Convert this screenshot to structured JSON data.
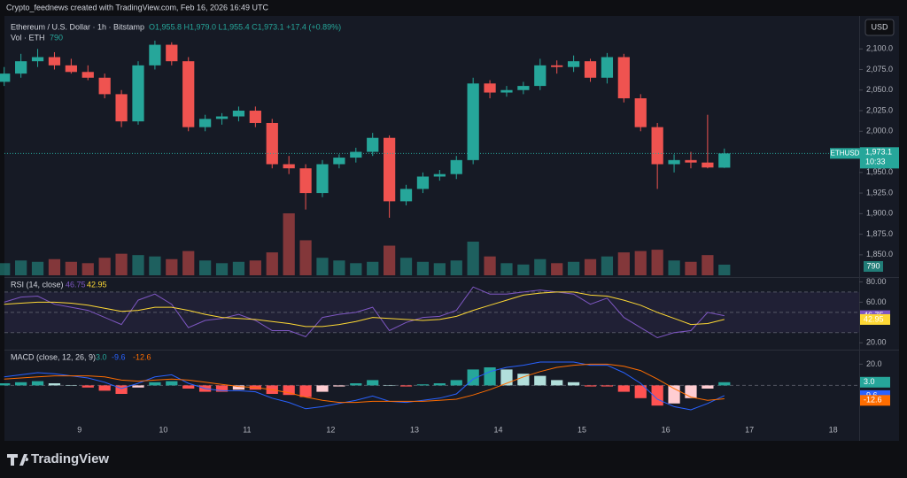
{
  "watermark": "Crypto_feednews created with TradingView.com, Feb 16, 2026 16:49 UTC",
  "currency": "USD",
  "brand": "TradingView",
  "chart_data": [
    {
      "type": "candlestick",
      "title": "Ethereum / U.S. Dollar · 1h · Bitstamp",
      "ohlc_text": "O1,955.8 H1,979.0 L1,955.4 C1,973.1 +17.4 (+0.89%)",
      "volume_title": "Vol · ETH",
      "volume_label": "790",
      "symbol": "ETHUSD",
      "price_label": "1,973.1",
      "countdown": "10:33",
      "up_color": "#26a69a",
      "down_color": "#ef5350",
      "x": [
        8.1,
        8.3,
        8.5,
        8.7,
        8.9,
        9.1,
        9.3,
        9.5,
        9.7,
        9.9,
        10.1,
        10.3,
        10.5,
        10.7,
        10.9,
        11.1,
        11.3,
        11.5,
        11.7,
        11.9,
        12.1,
        12.3,
        12.5,
        12.7,
        12.9,
        13.1,
        13.3,
        13.5,
        13.7,
        13.9,
        14.1,
        14.3,
        14.5,
        14.7,
        14.9,
        15.1,
        15.3,
        15.5,
        15.7,
        15.9,
        16.1,
        16.3,
        16.5,
        16.7
      ],
      "open": [
        2060,
        2070,
        2085,
        2090,
        2080,
        2072,
        2065,
        2045,
        2012,
        2080,
        2105,
        2085,
        2005,
        2015,
        2018,
        2025,
        2010,
        1960,
        1955,
        1925,
        1960,
        1968,
        1975,
        1992,
        1915,
        1930,
        1945,
        1948,
        1965,
        2058,
        2047,
        2050,
        2055,
        2080,
        2078,
        2085,
        2065,
        2090,
        2040,
        2005,
        1960,
        1965,
        1962,
        1955.8
      ],
      "high": [
        2078,
        2094,
        2100,
        2096,
        2088,
        2080,
        2070,
        2050,
        2085,
        2110,
        2108,
        2090,
        2020,
        2022,
        2030,
        2030,
        2015,
        1970,
        1960,
        1965,
        1972,
        1980,
        1998,
        1995,
        1935,
        1950,
        1953,
        1970,
        2065,
        2062,
        2055,
        2060,
        2088,
        2086,
        2092,
        2088,
        2095,
        2094,
        2045,
        2010,
        1972,
        1975,
        2020,
        1979.0
      ],
      "low": [
        2055,
        2065,
        2078,
        2075,
        2070,
        2062,
        2040,
        2005,
        2008,
        2075,
        2080,
        2000,
        2000,
        2008,
        2012,
        2005,
        1955,
        1948,
        1905,
        1920,
        1955,
        1962,
        1970,
        1895,
        1910,
        1925,
        1940,
        1942,
        1960,
        2040,
        2042,
        2045,
        2050,
        2070,
        2072,
        2060,
        2058,
        2035,
        2000,
        1930,
        1950,
        1955,
        1955,
        1955.4
      ],
      "close": [
        2070,
        2085,
        2090,
        2080,
        2072,
        2065,
        2045,
        2012,
        2080,
        2105,
        2085,
        2005,
        2015,
        2018,
        2025,
        2010,
        1960,
        1955,
        1925,
        1960,
        1968,
        1975,
        1992,
        1915,
        1930,
        1945,
        1948,
        1965,
        2058,
        2047,
        2050,
        2055,
        2080,
        2078,
        2085,
        2065,
        2090,
        2040,
        2005,
        1960,
        1965,
        1962,
        1956,
        1973.1
      ],
      "volume": [
        900,
        1100,
        1000,
        1200,
        1000,
        900,
        1300,
        1600,
        1500,
        1400,
        1200,
        1800,
        1100,
        900,
        1000,
        1100,
        1700,
        4600,
        2600,
        1300,
        1100,
        900,
        1000,
        2200,
        1300,
        1000,
        900,
        1100,
        2500,
        1400,
        900,
        800,
        1200,
        900,
        1000,
        1200,
        1400,
        1700,
        1800,
        1900,
        1100,
        1000,
        1500,
        790
      ],
      "ylim": [
        1823,
        2140
      ],
      "yticks": [
        {
          "value": 2100,
          "label": "2,100.0"
        },
        {
          "value": 2075,
          "label": "2,075.0"
        },
        {
          "value": 2050,
          "label": "2,050.0"
        },
        {
          "value": 2025,
          "label": "2,025.0"
        },
        {
          "value": 2000,
          "label": "2,000.0"
        },
        {
          "value": 1950,
          "label": "1,950.0"
        },
        {
          "value": 1925,
          "label": "1,925.0"
        },
        {
          "value": 1900,
          "label": "1,900.0"
        },
        {
          "value": 1875,
          "label": "1,875.0"
        },
        {
          "value": 1850,
          "label": "1,850.0"
        }
      ],
      "xlim": [
        8.05,
        18.31
      ],
      "xticks": [
        9,
        10,
        11,
        12,
        13,
        14,
        15,
        16,
        17,
        18
      ]
    },
    {
      "type": "line",
      "title": "RSI (14, close)",
      "ylim": [
        15,
        83
      ],
      "yticks": [
        {
          "value": 80,
          "label": "80.00"
        },
        {
          "value": 60,
          "label": "60.00"
        },
        {
          "value": 20,
          "label": "20.00"
        }
      ],
      "levels": [
        70,
        50,
        30
      ],
      "series": [
        {
          "color": "#7e57c2",
          "last_label": "46.75",
          "values": [
            60,
            65,
            66,
            58,
            55,
            52,
            45,
            38,
            62,
            68,
            58,
            35,
            42,
            44,
            48,
            42,
            32,
            32,
            26,
            45,
            48,
            50,
            55,
            32,
            40,
            45,
            46,
            52,
            75,
            68,
            68,
            70,
            72,
            70,
            68,
            58,
            64,
            45,
            35,
            25,
            30,
            32,
            50,
            46.75
          ]
        },
        {
          "color": "#fdd835",
          "last_label": "42.95",
          "values": [
            58,
            59,
            60,
            60,
            59,
            57,
            54,
            51,
            52,
            55,
            55,
            52,
            48,
            45,
            44,
            43,
            41,
            39,
            36,
            36,
            38,
            41,
            45,
            44,
            43,
            42,
            43,
            46,
            52,
            57,
            62,
            67,
            69,
            70,
            70,
            67,
            66,
            62,
            57,
            50,
            44,
            38,
            39,
            42.95
          ]
        }
      ]
    },
    {
      "type": "macd",
      "title": "MACD (close, 12, 26, 9)",
      "ylim": [
        -33,
        32
      ],
      "yticks": [
        {
          "value": 20,
          "label": "20.0"
        }
      ],
      "histogram": {
        "last_label": "3.0",
        "values": [
          2,
          3,
          4,
          2,
          0,
          -2,
          -5,
          -8,
          -2,
          3,
          4,
          -3,
          -6,
          -6,
          -4,
          -4,
          -8,
          -9,
          -11,
          -6,
          -1,
          2,
          5,
          0,
          -1,
          1,
          2,
          5,
          15,
          17,
          15,
          11,
          9,
          5,
          3,
          -1,
          -1,
          -6,
          -12,
          -19,
          -17,
          -12,
          -3,
          3.0
        ]
      },
      "series": [
        {
          "color": "#2962ff",
          "last_label": "-9.6",
          "values": [
            8,
            10,
            12,
            11,
            9,
            7,
            3,
            -3,
            2,
            8,
            10,
            2,
            -3,
            -5,
            -5,
            -6,
            -12,
            -16,
            -22,
            -20,
            -17,
            -14,
            -10,
            -15,
            -16,
            -14,
            -12,
            -8,
            6,
            13,
            17,
            19,
            22,
            22,
            22,
            19,
            19,
            12,
            2,
            -13,
            -20,
            -23,
            -17,
            -9.6
          ]
        },
        {
          "color": "#ff6d00",
          "last_label": "-12.6",
          "values": [
            6,
            7,
            8,
            9,
            9,
            9,
            8,
            5,
            4,
            5,
            6,
            5,
            3,
            1,
            -1,
            -2,
            -4,
            -7,
            -11,
            -14,
            -16,
            -16,
            -15,
            -15,
            -15,
            -15,
            -14,
            -13,
            -9,
            -4,
            2,
            8,
            13,
            17,
            19,
            20,
            20,
            18,
            14,
            6,
            -3,
            -11,
            -14,
            -12.6
          ]
        }
      ]
    }
  ]
}
